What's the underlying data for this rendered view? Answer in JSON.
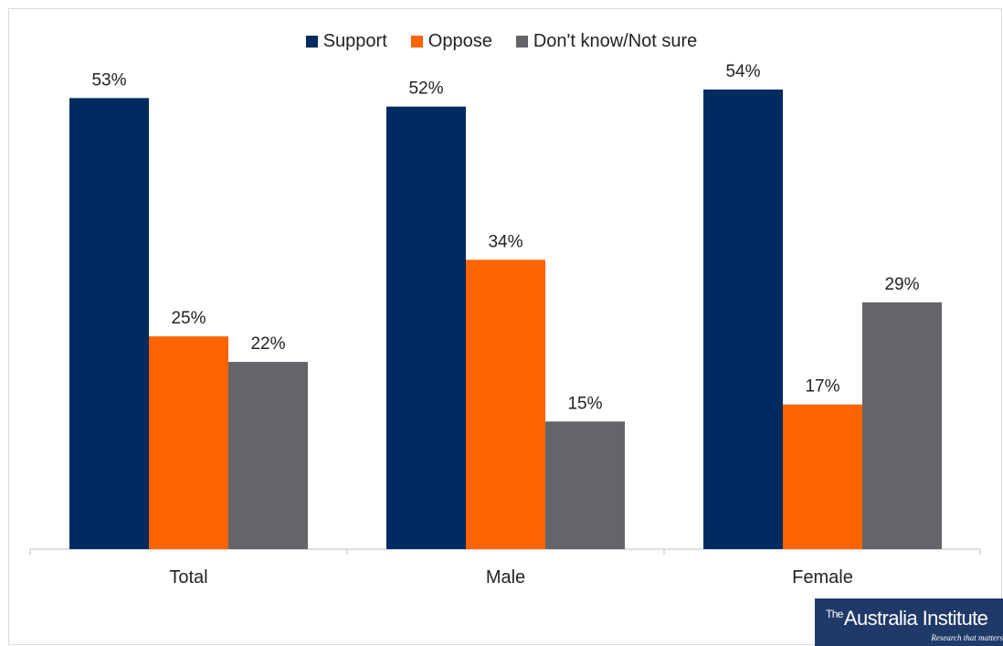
{
  "legend": [
    {
      "name": "Support",
      "color": "#002b61"
    },
    {
      "name": "Oppose",
      "color": "#ff6400"
    },
    {
      "name": "Don't know/Not sure",
      "color": "#636569"
    }
  ],
  "chart_data": {
    "type": "bar",
    "categories": [
      "Total",
      "Male",
      "Female"
    ],
    "series": [
      {
        "name": "Support",
        "values": [
          53,
          52,
          54
        ],
        "labels": [
          "53%",
          "52%",
          "54%"
        ],
        "color": "#002b61"
      },
      {
        "name": "Oppose",
        "values": [
          25,
          34,
          17
        ],
        "labels": [
          "25%",
          "34%",
          "17%"
        ],
        "color": "#ff6400"
      },
      {
        "name": "Don't know/Not sure",
        "values": [
          22,
          15,
          29
        ],
        "labels": [
          "22%",
          "15%",
          "29%"
        ],
        "color": "#636569"
      }
    ],
    "ylim": [
      0,
      60
    ],
    "legend_position": "top-center",
    "grid": false
  },
  "logo": {
    "the": "The",
    "name": "Australia Institute",
    "tagline": "Research that matters"
  }
}
